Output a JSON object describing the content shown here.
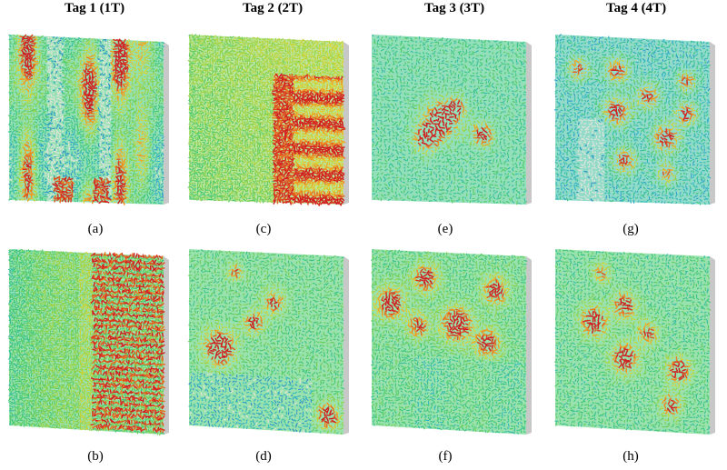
{
  "figure": {
    "columns": [
      {
        "title": "Tag 1 (1T)"
      },
      {
        "title": "Tag 2 (2T)"
      },
      {
        "title": "Tag 3 (3T)"
      },
      {
        "title": "Tag 4 (4T)"
      }
    ],
    "panels": [
      {
        "id": "a",
        "caption": "(a)",
        "tag": "Tag 1 (1T)",
        "view": "top"
      },
      {
        "id": "c",
        "caption": "(c)",
        "tag": "Tag 2 (2T)",
        "view": "top"
      },
      {
        "id": "e",
        "caption": "(e)",
        "tag": "Tag 3 (3T)",
        "view": "top"
      },
      {
        "id": "g",
        "caption": "(g)",
        "tag": "Tag 4 (4T)",
        "view": "top"
      },
      {
        "id": "b",
        "caption": "(b)",
        "tag": "Tag 1 (1T)",
        "view": "bottom"
      },
      {
        "id": "d",
        "caption": "(d)",
        "tag": "Tag 2 (2T)",
        "view": "bottom"
      },
      {
        "id": "f",
        "caption": "(f)",
        "tag": "Tag 3 (3T)",
        "view": "bottom"
      },
      {
        "id": "h",
        "caption": "(h)",
        "tag": "Tag 4 (4T)",
        "view": "bottom"
      }
    ],
    "colormap": [
      "#1e5cc8",
      "#2fb4c8",
      "#3cc86e",
      "#9cd23a",
      "#e6d228",
      "#f08c1e",
      "#d21e1e"
    ]
  }
}
